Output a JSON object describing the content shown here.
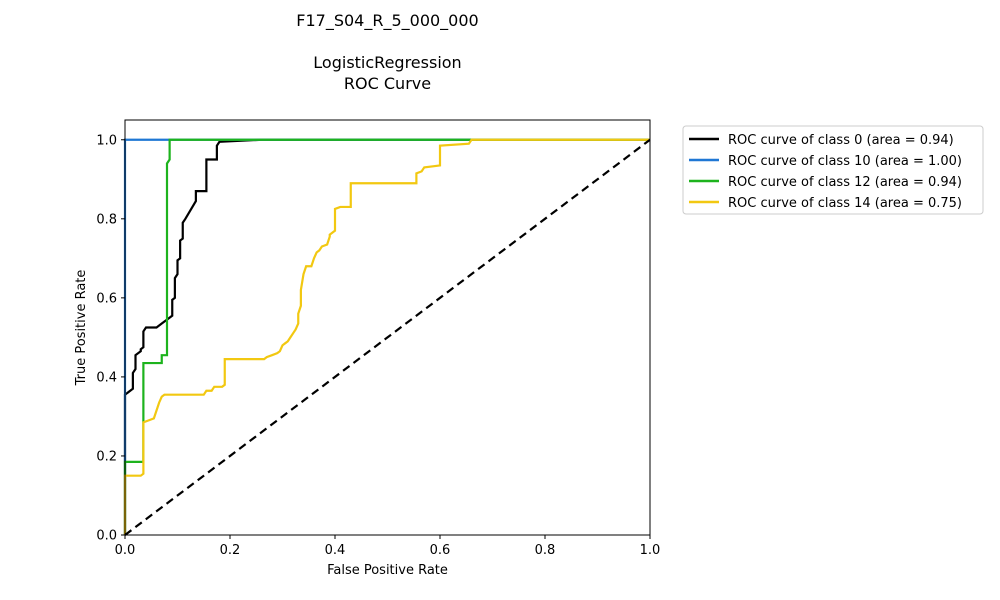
{
  "chart_data": {
    "type": "line",
    "title_lines": [
      "F17_S04_R_5_000_000",
      "",
      "LogisticRegression",
      "ROC Curve"
    ],
    "xlabel": "False Positive Rate",
    "ylabel": "True Positive Rate",
    "xlim": [
      0.0,
      1.0
    ],
    "ylim": [
      0.0,
      1.05
    ],
    "x_ticks": [
      "0.0",
      "0.2",
      "0.4",
      "0.6",
      "0.8",
      "1.0"
    ],
    "y_ticks": [
      "0.0",
      "0.2",
      "0.4",
      "0.6",
      "0.8",
      "1.0"
    ],
    "grid": false,
    "legend_position": "outside-right",
    "series": [
      {
        "name": "ROC curve of class 0 (area = 0.94)",
        "color": "#000000",
        "x": [
          0.0,
          0.0,
          0.005,
          0.015,
          0.015,
          0.02,
          0.02,
          0.03,
          0.03,
          0.035,
          0.035,
          0.04,
          0.06,
          0.07,
          0.08,
          0.09,
          0.09,
          0.095,
          0.095,
          0.1,
          0.1,
          0.105,
          0.105,
          0.11,
          0.11,
          0.115,
          0.135,
          0.135,
          0.155,
          0.155,
          0.175,
          0.175,
          0.18,
          0.26,
          1.0
        ],
        "y": [
          0.0,
          0.355,
          0.36,
          0.37,
          0.41,
          0.42,
          0.455,
          0.465,
          0.47,
          0.475,
          0.515,
          0.525,
          0.525,
          0.535,
          0.545,
          0.555,
          0.595,
          0.6,
          0.65,
          0.66,
          0.695,
          0.7,
          0.745,
          0.75,
          0.79,
          0.8,
          0.845,
          0.87,
          0.87,
          0.95,
          0.95,
          0.985,
          0.995,
          1.0,
          1.0
        ]
      },
      {
        "name": "ROC curve of class 10 (area = 1.00)",
        "color": "#1f77d4",
        "x": [
          0.0,
          0.0,
          1.0
        ],
        "y": [
          0.0,
          1.0,
          1.0
        ]
      },
      {
        "name": "ROC curve of class 12 (area = 0.94)",
        "color": "#1db31d",
        "x": [
          0.0,
          0.0,
          0.005,
          0.035,
          0.035,
          0.07,
          0.07,
          0.08,
          0.08,
          0.085,
          0.085,
          0.09,
          0.66,
          1.0
        ],
        "y": [
          0.0,
          0.185,
          0.185,
          0.185,
          0.435,
          0.435,
          0.455,
          0.455,
          0.94,
          0.95,
          1.0,
          1.0,
          1.0,
          1.0
        ]
      },
      {
        "name": "ROC curve of class 14 (area = 0.75)",
        "color": "#f2c811",
        "x": [
          0.0,
          0.0,
          0.03,
          0.035,
          0.035,
          0.045,
          0.055,
          0.065,
          0.07,
          0.075,
          0.15,
          0.155,
          0.165,
          0.17,
          0.185,
          0.19,
          0.19,
          0.265,
          0.27,
          0.28,
          0.29,
          0.295,
          0.3,
          0.305,
          0.31,
          0.315,
          0.32,
          0.325,
          0.33,
          0.33,
          0.335,
          0.335,
          0.34,
          0.345,
          0.355,
          0.36,
          0.365,
          0.37,
          0.375,
          0.385,
          0.39,
          0.39,
          0.4,
          0.4,
          0.41,
          0.43,
          0.43,
          0.555,
          0.555,
          0.565,
          0.57,
          0.6,
          0.6,
          0.655,
          0.66,
          1.0
        ],
        "y": [
          0.0,
          0.15,
          0.15,
          0.155,
          0.285,
          0.29,
          0.295,
          0.335,
          0.35,
          0.355,
          0.355,
          0.365,
          0.365,
          0.375,
          0.375,
          0.38,
          0.445,
          0.445,
          0.45,
          0.455,
          0.46,
          0.465,
          0.48,
          0.485,
          0.49,
          0.5,
          0.51,
          0.52,
          0.535,
          0.56,
          0.58,
          0.62,
          0.66,
          0.68,
          0.68,
          0.7,
          0.715,
          0.72,
          0.73,
          0.735,
          0.755,
          0.76,
          0.77,
          0.825,
          0.83,
          0.83,
          0.89,
          0.89,
          0.915,
          0.92,
          0.93,
          0.935,
          0.985,
          0.99,
          1.0,
          1.0
        ]
      }
    ],
    "reference_line": {
      "x": [
        0.0,
        1.0
      ],
      "y": [
        0.0,
        1.0
      ],
      "color": "#000000",
      "style": "dashed"
    }
  }
}
